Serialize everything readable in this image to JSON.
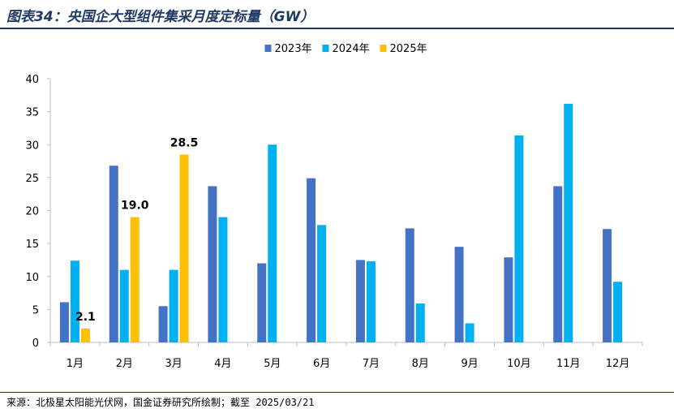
{
  "title": "图表34：央国企大型组件集采月度定标量（GW）",
  "source": "来源：北极星太阳能光伏网，国金证券研究所绘制；截至 2025/03/21",
  "colors": {
    "title": "#1f3864",
    "axis": "#bfbfbf",
    "text": "#000000"
  },
  "chart_data": {
    "type": "bar",
    "title": "图表34：央国企大型组件集采月度定标量（GW）",
    "xlabel": "",
    "ylabel": "",
    "ylim": [
      0,
      40
    ],
    "yticks": [
      0,
      5,
      10,
      15,
      20,
      25,
      30,
      35,
      40
    ],
    "grid": false,
    "legend": "top-center",
    "categories": [
      "1月",
      "2月",
      "3月",
      "4月",
      "5月",
      "6月",
      "7月",
      "8月",
      "9月",
      "10月",
      "11月",
      "12月"
    ],
    "series": [
      {
        "name": "2023年",
        "color": "#4472c4",
        "values": [
          6.1,
          26.8,
          5.5,
          23.7,
          12.0,
          24.9,
          12.5,
          17.3,
          14.5,
          12.9,
          23.7,
          17.2
        ]
      },
      {
        "name": "2024年",
        "color": "#00b0f0",
        "values": [
          12.4,
          11.0,
          11.0,
          19.0,
          30.0,
          17.8,
          12.3,
          5.9,
          2.9,
          31.4,
          36.2,
          9.2
        ]
      },
      {
        "name": "2025年",
        "color": "#ffc000",
        "values": [
          2.1,
          19.0,
          28.5,
          null,
          null,
          null,
          null,
          null,
          null,
          null,
          null,
          null
        ],
        "labels": [
          "2.1",
          "19.0",
          "28.5",
          null,
          null,
          null,
          null,
          null,
          null,
          null,
          null,
          null
        ]
      }
    ]
  }
}
